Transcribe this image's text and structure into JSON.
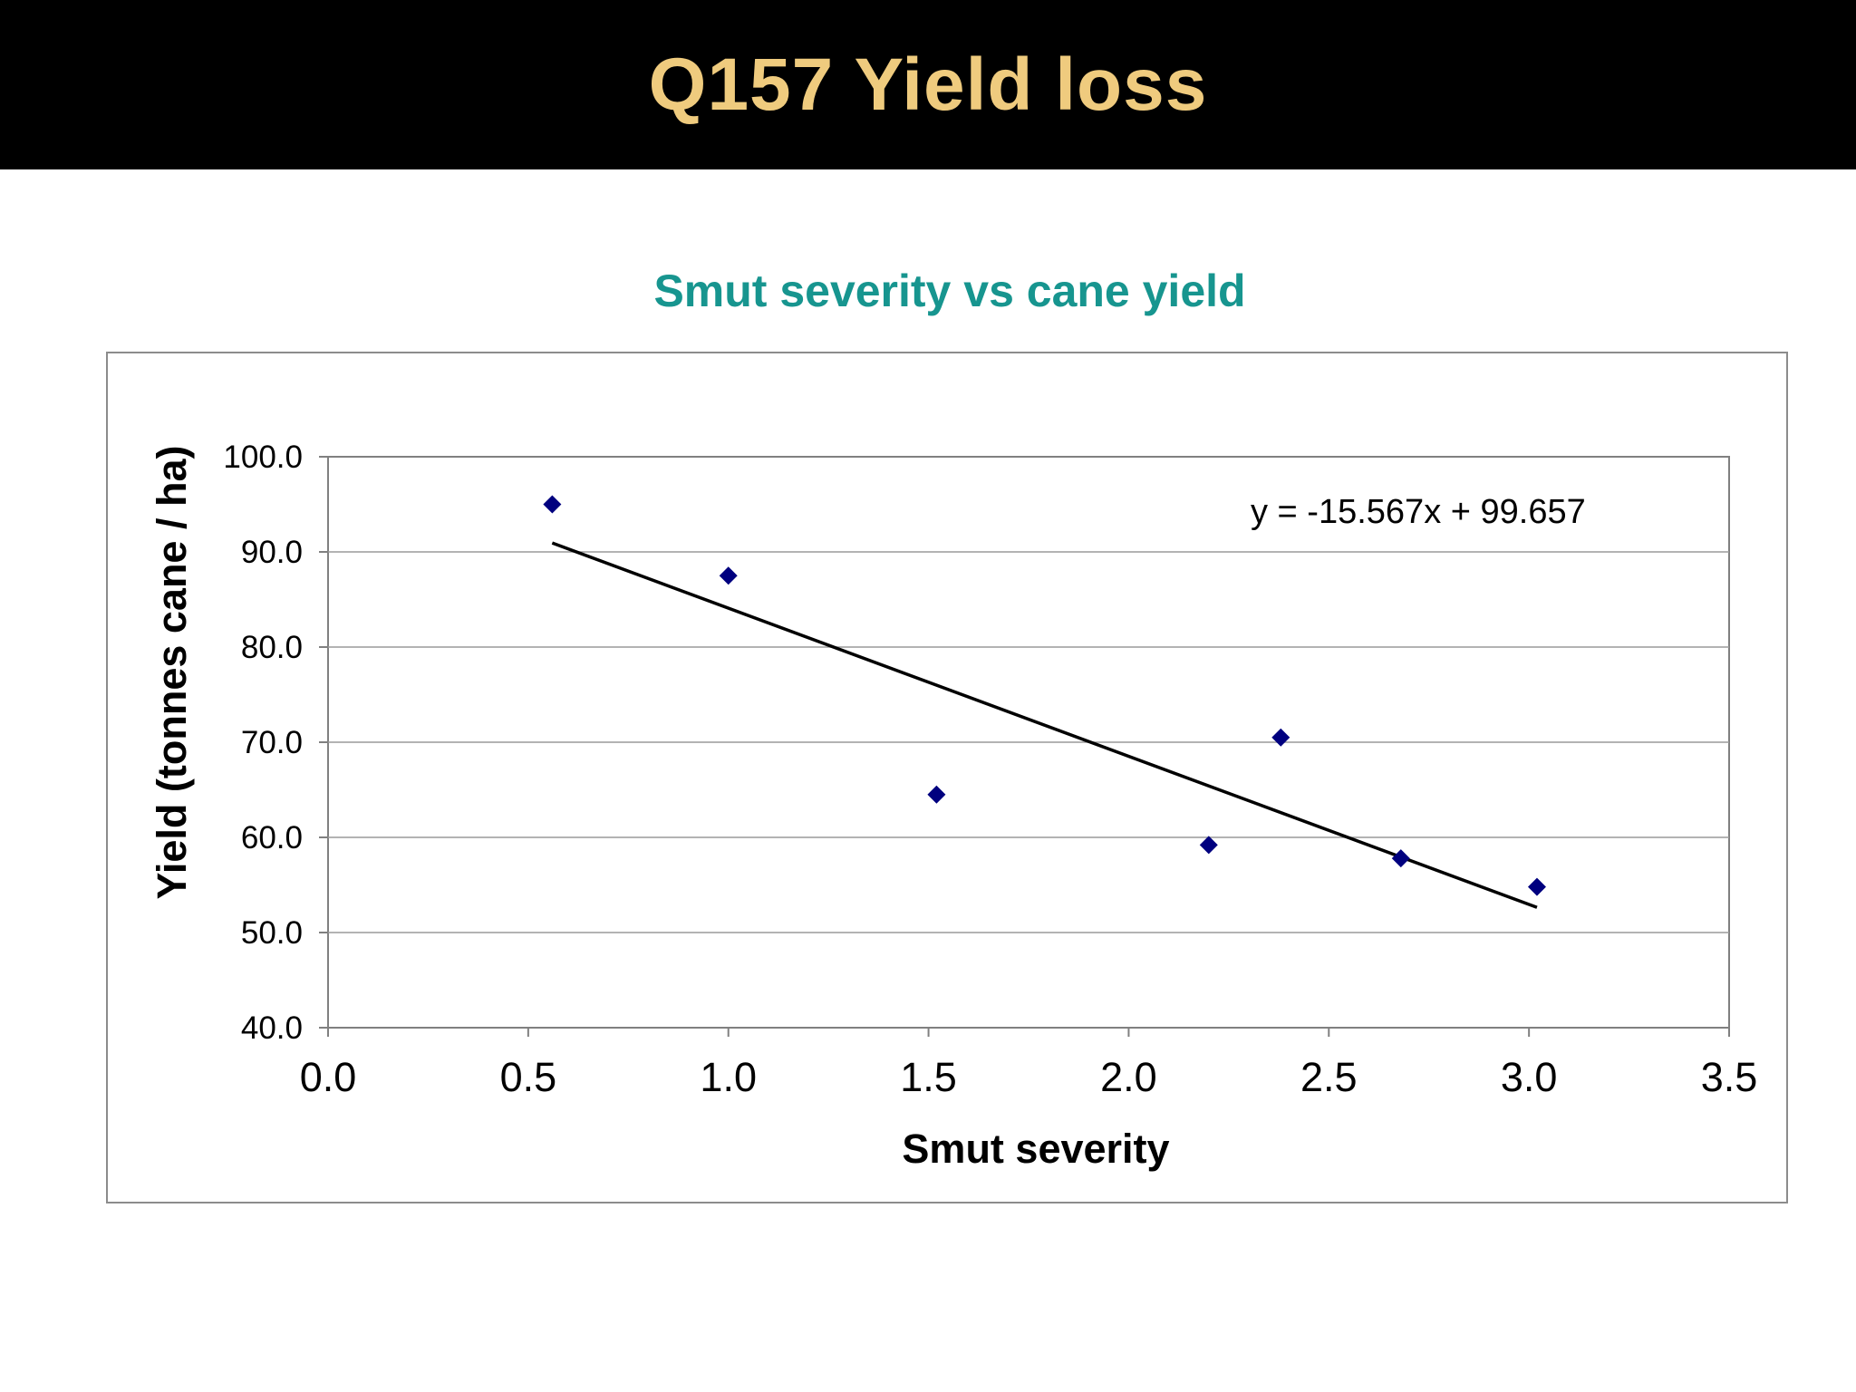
{
  "slide": {
    "title": "Q157 Yield loss"
  },
  "colors": {
    "header_bg": "#000000",
    "title_text": "#EFCB7E",
    "chart_title": "#17958F",
    "marker": "#00007F",
    "trendline": "#000000"
  },
  "chart_data": {
    "type": "scatter",
    "title": "Smut severity vs cane yield",
    "xlabel": "Smut severity",
    "ylabel": "Yield (tonnes cane / ha)",
    "xlim": [
      0.0,
      3.5
    ],
    "ylim": [
      40.0,
      100.0
    ],
    "x_ticks": [
      "0.0",
      "0.5",
      "1.0",
      "1.5",
      "2.0",
      "2.5",
      "3.0",
      "3.5"
    ],
    "y_ticks": [
      "40.0",
      "50.0",
      "60.0",
      "70.0",
      "80.0",
      "90.0",
      "100.0"
    ],
    "grid": "horizontal",
    "legend": "none",
    "series": [
      {
        "marker": "diamond",
        "x": [
          0.56,
          1.0,
          1.52,
          2.2,
          2.38,
          2.68,
          3.02
        ],
        "y": [
          95.0,
          87.5,
          64.5,
          59.2,
          70.5,
          57.8,
          54.8
        ]
      }
    ],
    "trendline": {
      "slope": -15.567,
      "intercept": 99.657,
      "x_range": [
        0.56,
        3.02
      ],
      "equation_label": "y = -15.567x + 99.657"
    }
  }
}
